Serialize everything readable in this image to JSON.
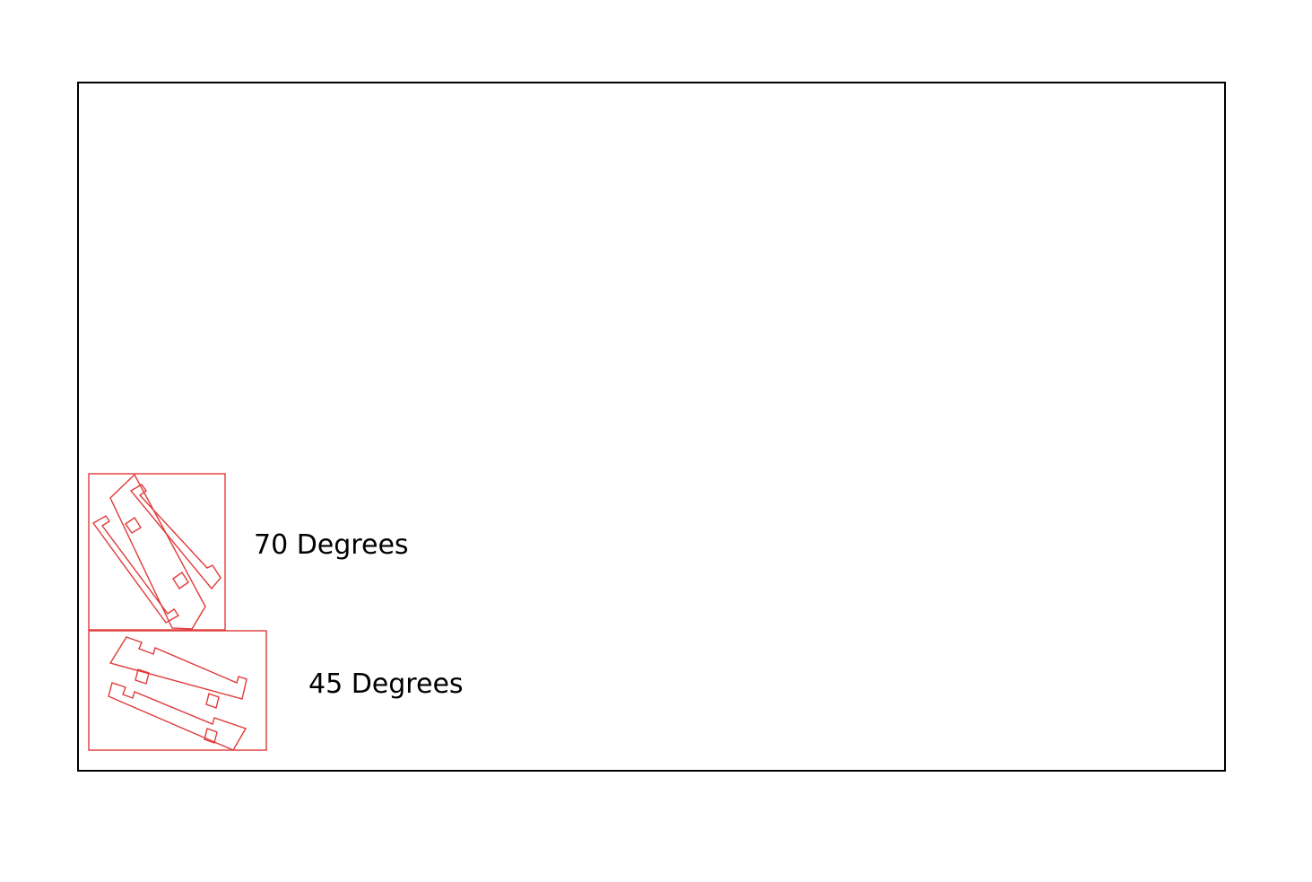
{
  "labels": {
    "nest_70": "70 Degrees",
    "nest_45": "45 Degrees"
  },
  "colors": {
    "sheet_border": "#000000",
    "cut_line": "#e03a3a",
    "text": "#000000",
    "background": "#ffffff"
  },
  "nests": [
    {
      "name": "nest-70",
      "angle_deg": 70,
      "part_count": 2
    },
    {
      "name": "nest-45",
      "angle_deg": 45,
      "part_count": 2
    }
  ]
}
